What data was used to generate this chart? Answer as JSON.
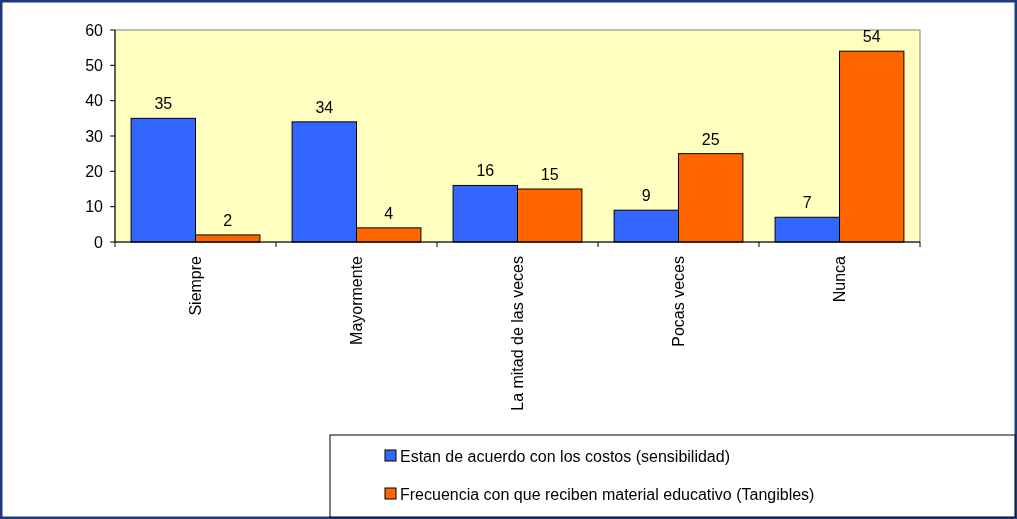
{
  "chart_data": {
    "type": "bar",
    "categories": [
      "Siempre",
      "Mayormente",
      "La mitad de las veces",
      "Pocas veces",
      "Nunca"
    ],
    "series": [
      {
        "name": "Estan de acuerdo con los costos (sensibilidad)",
        "color": "#3366ff",
        "values": [
          35,
          34,
          16,
          9,
          7
        ]
      },
      {
        "name": "Frecuencia con que reciben material educativo (Tangibles)",
        "color": "#ff6600",
        "values": [
          2,
          4,
          15,
          25,
          54
        ]
      }
    ],
    "ylim": [
      0,
      60
    ],
    "yticks": [
      0,
      10,
      20,
      30,
      40,
      50,
      60
    ],
    "data_labels": true,
    "grid": false,
    "legend": "bottom right"
  }
}
